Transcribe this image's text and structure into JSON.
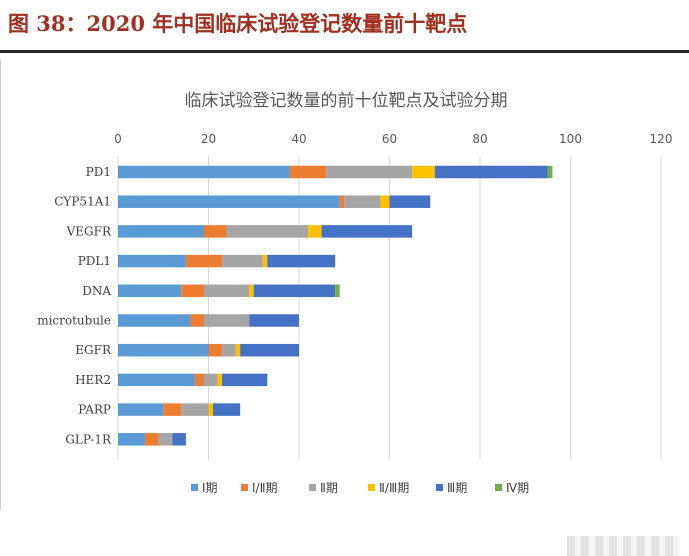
{
  "caption": "图 38：2020 年中国临床试验登记数量前十靶点",
  "chart_data": {
    "type": "bar",
    "orientation": "horizontal",
    "stacked": true,
    "title": "临床试验登记数量的前十位靶点及试验分期",
    "xlim": [
      0,
      120
    ],
    "xticks": [
      0,
      20,
      40,
      60,
      80,
      100,
      120
    ],
    "grid": true,
    "legend_position": "bottom",
    "categories": [
      "PD1",
      "CYP51A1",
      "VEGFR",
      "PDL1",
      "DNA",
      "microtubule",
      "EGFR",
      "HER2",
      "PARP",
      "GLP-1R"
    ],
    "series": [
      {
        "name": "Ⅰ期",
        "color": "#5b9bd5",
        "values": [
          38,
          49,
          19,
          15,
          14,
          16,
          20,
          17,
          10,
          6
        ]
      },
      {
        "name": "Ⅰ/Ⅱ期",
        "color": "#ed7d31",
        "values": [
          8,
          1,
          5,
          8,
          5,
          3,
          3,
          2,
          4,
          3
        ]
      },
      {
        "name": "Ⅱ期",
        "color": "#a5a5a5",
        "values": [
          19,
          8,
          18,
          9,
          10,
          10,
          3,
          3,
          6,
          3
        ]
      },
      {
        "name": "Ⅱ/Ⅲ期",
        "color": "#ffc000",
        "values": [
          5,
          2,
          3,
          1,
          1,
          0,
          1,
          1,
          1,
          0
        ]
      },
      {
        "name": "Ⅲ期",
        "color": "#4472c4",
        "values": [
          25,
          9,
          20,
          15,
          18,
          11,
          13,
          10,
          6,
          3
        ]
      },
      {
        "name": "Ⅳ期",
        "color": "#70ad47",
        "values": [
          1,
          0,
          0,
          0,
          1,
          0,
          0,
          0,
          0,
          0
        ]
      }
    ]
  }
}
